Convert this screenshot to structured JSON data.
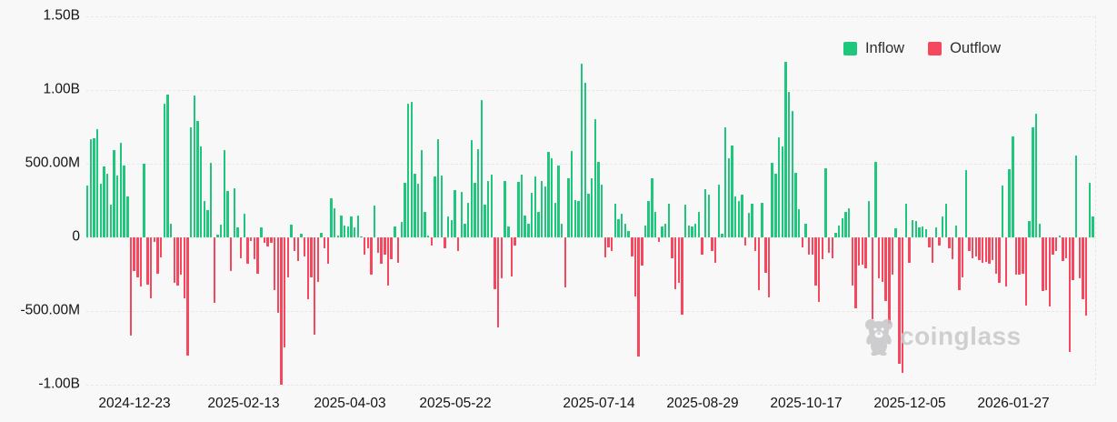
{
  "chart_data": {
    "type": "bar",
    "title": "",
    "xlabel": "",
    "ylabel": "",
    "unit": "USD (M = million, B = billion)",
    "ylim": [
      -1000,
      1500
    ],
    "grid": "horizontal-dashed",
    "legend_position": "top-right",
    "y_ticks": [
      {
        "label": "1.50B",
        "value": 1500
      },
      {
        "label": "1.00B",
        "value": 1000
      },
      {
        "label": "500.00M",
        "value": 500
      },
      {
        "label": "0",
        "value": 0
      },
      {
        "label": "-500.00M",
        "value": -500
      },
      {
        "label": "-1.00B",
        "value": -1000
      }
    ],
    "x_ticks": [
      "2024-12-23",
      "2025-02-13",
      "2025-04-03",
      "2025-05-22",
      "2025-07-14",
      "2025-08-29",
      "2025-10-17",
      "2025-12-05",
      "2026-01-27"
    ],
    "legend": [
      {
        "label": "Inflow",
        "color": "#1fc77d"
      },
      {
        "label": "Outflow",
        "color": "#f5485f"
      }
    ],
    "values_unit": "millions",
    "values": [
      350,
      665,
      675,
      735,
      365,
      480,
      430,
      220,
      595,
      420,
      640,
      490,
      275,
      -665,
      -230,
      -270,
      -335,
      500,
      -320,
      -415,
      -30,
      -245,
      -135,
      905,
      970,
      95,
      -310,
      -330,
      -250,
      -415,
      -805,
      745,
      965,
      790,
      615,
      245,
      185,
      505,
      -445,
      20,
      85,
      590,
      315,
      -230,
      335,
      65,
      -145,
      160,
      -180,
      -25,
      -150,
      -245,
      70,
      -35,
      -60,
      -35,
      -355,
      -510,
      -1000,
      -745,
      -270,
      85,
      -90,
      -160,
      25,
      -130,
      -420,
      -270,
      -660,
      -300,
      30,
      -75,
      -180,
      265,
      195,
      15,
      150,
      80,
      75,
      140,
      65,
      150,
      5,
      -120,
      -75,
      -250,
      215,
      -105,
      -180,
      -120,
      -330,
      -150,
      75,
      -170,
      105,
      370,
      905,
      920,
      430,
      365,
      590,
      175,
      10,
      -55,
      415,
      665,
      420,
      -75,
      140,
      115,
      320,
      -90,
      310,
      95,
      235,
      660,
      370,
      600,
      930,
      220,
      380,
      425,
      -350,
      -610,
      -275,
      385,
      75,
      -265,
      -55,
      375,
      425,
      150,
      90,
      300,
      415,
      170,
      380,
      345,
      580,
      535,
      235,
      490,
      95,
      -340,
      400,
      585,
      255,
      245,
      1180,
      1050,
      295,
      400,
      805,
      510,
      355,
      -135,
      -65,
      -90,
      230,
      125,
      160,
      90,
      45,
      -130,
      -400,
      -810,
      -190,
      80,
      245,
      400,
      170,
      -30,
      75,
      95,
      230,
      -140,
      -350,
      -310,
      -525,
      225,
      80,
      75,
      90,
      170,
      -120,
      330,
      290,
      -95,
      -175,
      360,
      25,
      745,
      540,
      625,
      280,
      250,
      290,
      -55,
      165,
      230,
      -95,
      -360,
      235,
      -240,
      -410,
      505,
      430,
      680,
      620,
      1190,
      985,
      855,
      440,
      190,
      -70,
      95,
      -115,
      -115,
      -330,
      -440,
      -150,
      470,
      -105,
      -140,
      30,
      80,
      130,
      170,
      200,
      -330,
      -480,
      -190,
      -185,
      -210,
      245,
      -555,
      515,
      -280,
      -300,
      -430,
      -585,
      -250,
      60,
      -860,
      -920,
      230,
      -175,
      120,
      110,
      65,
      75,
      55,
      -65,
      -175,
      65,
      -55,
      145,
      230,
      -75,
      -150,
      80,
      -355,
      -270,
      455,
      -90,
      -145,
      -130,
      -155,
      -170,
      -165,
      -180,
      -155,
      -245,
      -310,
      350,
      -335,
      465,
      685,
      -250,
      -250,
      -245,
      -465,
      110,
      750,
      840,
      95,
      -365,
      -355,
      -470,
      -120,
      -90,
      10,
      -160,
      -140,
      -780,
      -290,
      555,
      -280,
      -420,
      -530,
      370,
      145
    ]
  },
  "watermark": {
    "text": "coinglass",
    "icon": "bear-mascot-icon",
    "color": "#c9c9cb"
  }
}
